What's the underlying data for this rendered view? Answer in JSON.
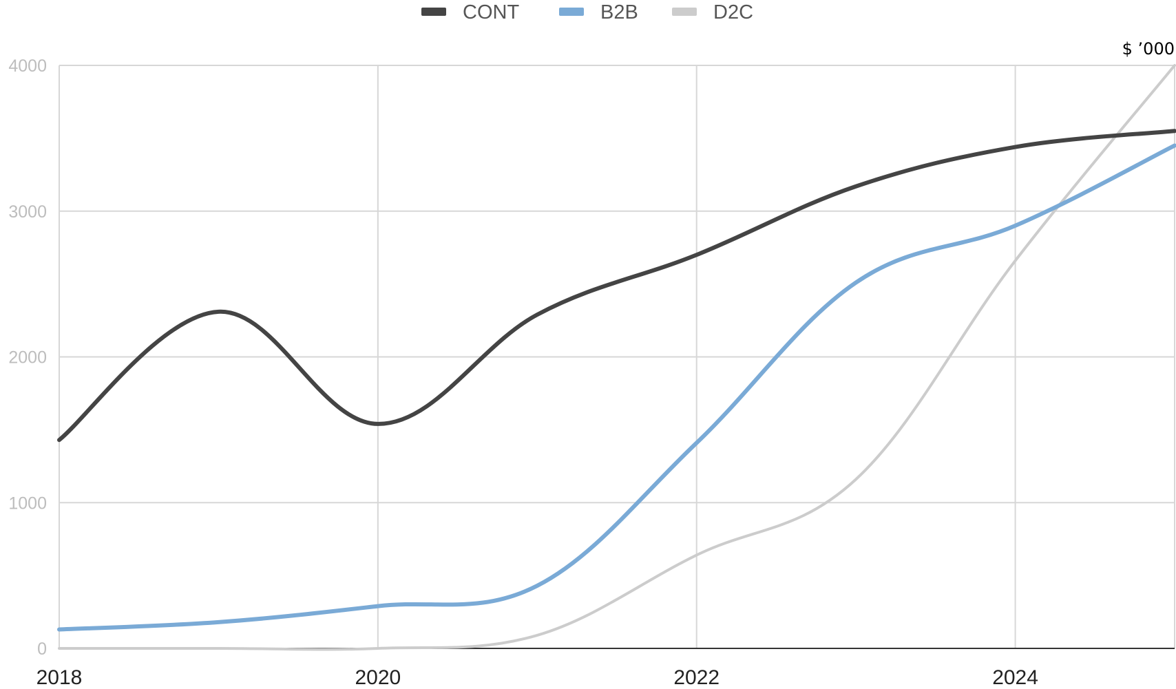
{
  "chart_data": {
    "type": "line",
    "unit_label": "$ ’000",
    "x": [
      2018,
      2019,
      2020,
      2021,
      2022,
      2023,
      2024,
      2025
    ],
    "xticks": [
      "2018",
      "2020",
      "2022",
      "2024"
    ],
    "yticks": [
      "0",
      "1000",
      "2000",
      "3000",
      "4000"
    ],
    "ylim": [
      0,
      4000
    ],
    "xlim": [
      2018,
      2025
    ],
    "grid": true,
    "legend_position": "top-center",
    "series": [
      {
        "name": "CONT",
        "color": "#444444",
        "values": [
          1430,
          2310,
          1540,
          2290,
          2700,
          3170,
          3440,
          3550
        ]
      },
      {
        "name": "B2B",
        "color": "#7aaad6",
        "values": [
          130,
          180,
          290,
          430,
          1410,
          2510,
          2900,
          3450
        ]
      },
      {
        "name": "D2C",
        "color": "#cccccc",
        "values": [
          0,
          0,
          0,
          90,
          640,
          1160,
          2660,
          4000
        ]
      }
    ]
  }
}
